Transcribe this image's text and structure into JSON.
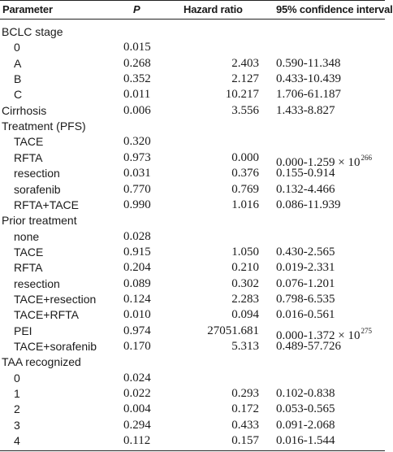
{
  "header": {
    "parameter": "Parameter",
    "p": "P",
    "hazard_ratio": "Hazard ratio",
    "ci": "95% confidence interval"
  },
  "rows": [
    {
      "param": "BCLC stage",
      "indent": false,
      "p": "",
      "hr": "",
      "ci": "",
      "sup": ""
    },
    {
      "param": "0",
      "indent": true,
      "p": "0.015",
      "hr": "",
      "ci": "",
      "sup": ""
    },
    {
      "param": "A",
      "indent": true,
      "p": "0.268",
      "hr": "2.403",
      "ci": "0.590-11.348",
      "sup": ""
    },
    {
      "param": "B",
      "indent": true,
      "p": "0.352",
      "hr": "2.127",
      "ci": "0.433-10.439",
      "sup": ""
    },
    {
      "param": "C",
      "indent": true,
      "p": "0.011",
      "hr": "10.217",
      "ci": "1.706-61.187",
      "sup": ""
    },
    {
      "param": "Cirrhosis",
      "indent": false,
      "p": "0.006",
      "hr": "3.556",
      "ci": "1.433-8.827",
      "sup": ""
    },
    {
      "param": "Treatment (PFS)",
      "indent": false,
      "p": "",
      "hr": "",
      "ci": "",
      "sup": ""
    },
    {
      "param": "TACE",
      "indent": true,
      "p": "0.320",
      "hr": "",
      "ci": "",
      "sup": ""
    },
    {
      "param": "RFTA",
      "indent": true,
      "p": "0.973",
      "hr": "0.000",
      "ci": "0.000-1.259 × 10",
      "sup": "266"
    },
    {
      "param": "resection",
      "indent": true,
      "p": "0.031",
      "hr": "0.376",
      "ci": "0.155-0.914",
      "sup": ""
    },
    {
      "param": "sorafenib",
      "indent": true,
      "p": "0.770",
      "hr": "0.769",
      "ci": "0.132-4.466",
      "sup": ""
    },
    {
      "param": "RFTA+TACE",
      "indent": true,
      "p": "0.990",
      "hr": "1.016",
      "ci": "0.086-11.939",
      "sup": ""
    },
    {
      "param": "Prior treatment",
      "indent": false,
      "p": "",
      "hr": "",
      "ci": "",
      "sup": ""
    },
    {
      "param": "none",
      "indent": true,
      "p": "0.028",
      "hr": "",
      "ci": "",
      "sup": ""
    },
    {
      "param": "TACE",
      "indent": true,
      "p": "0.915",
      "hr": "1.050",
      "ci": "0.430-2.565",
      "sup": ""
    },
    {
      "param": "RFTA",
      "indent": true,
      "p": "0.204",
      "hr": "0.210",
      "ci": "0.019-2.331",
      "sup": ""
    },
    {
      "param": "resection",
      "indent": true,
      "p": "0.089",
      "hr": "0.302",
      "ci": "0.076-1.201",
      "sup": ""
    },
    {
      "param": "TACE+resection",
      "indent": true,
      "p": "0.124",
      "hr": "2.283",
      "ci": "0.798-6.535",
      "sup": ""
    },
    {
      "param": "TACE+RFTA",
      "indent": true,
      "p": "0.010",
      "hr": "0.094",
      "ci": "0.016-0.561",
      "sup": ""
    },
    {
      "param": "PEI",
      "indent": true,
      "p": "0.974",
      "hr": "27051.681",
      "ci": "0.000-1.372 × 10",
      "sup": "275"
    },
    {
      "param": "TACE+sorafenib",
      "indent": true,
      "p": "0.170",
      "hr": "5.313",
      "ci": "0.489-57.726",
      "sup": ""
    },
    {
      "param": "TAA recognized",
      "indent": false,
      "p": "",
      "hr": "",
      "ci": "",
      "sup": ""
    },
    {
      "param": "0",
      "indent": true,
      "p": "0.024",
      "hr": "",
      "ci": "",
      "sup": ""
    },
    {
      "param": "1",
      "indent": true,
      "p": "0.022",
      "hr": "0.293",
      "ci": "0.102-0.838",
      "sup": ""
    },
    {
      "param": "2",
      "indent": true,
      "p": "0.004",
      "hr": "0.172",
      "ci": "0.053-0.565",
      "sup": ""
    },
    {
      "param": "3",
      "indent": true,
      "p": "0.294",
      "hr": "0.433",
      "ci": "0.091-2.068",
      "sup": ""
    },
    {
      "param": "4",
      "indent": true,
      "p": "0.112",
      "hr": "0.157",
      "ci": "0.016-1.544",
      "sup": ""
    }
  ]
}
